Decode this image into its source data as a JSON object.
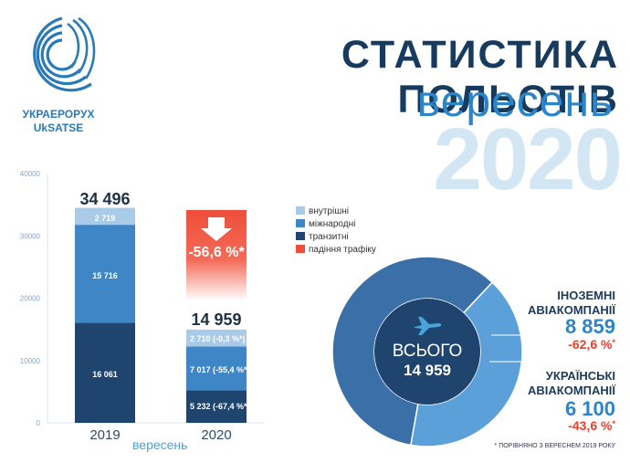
{
  "logo": {
    "line1": "УКРАЕРОРУХ",
    "line2": "UkSATSE"
  },
  "header": {
    "title": "СТАТИСТИКА ПОЛЬОТІВ",
    "month": "вересень",
    "year": "2020"
  },
  "colors": {
    "internal": "#a9cbe8",
    "international": "#3e86c6",
    "transit": "#1f456f",
    "drop": "#ef4e3b",
    "foreign": "#3a6fa8",
    "ukrainian": "#5ba0d8"
  },
  "legend": [
    {
      "label": "внутрішні",
      "color": "#a9cbe8"
    },
    {
      "label": "міжнародні",
      "color": "#3e86c6"
    },
    {
      "label": "транзитні",
      "color": "#1f456f"
    },
    {
      "label": "падіння трафіку",
      "color": "#ef4e3b"
    }
  ],
  "bar_chart": {
    "totals": [
      "34 496",
      "14 959"
    ],
    "drop_pct": "-56,6 %*",
    "y_ticks": [
      "0",
      "10000",
      "20000",
      "30000",
      "40000"
    ],
    "x_title": "вересень",
    "labels_2019": [
      "2 719",
      "15 716",
      "16 061"
    ],
    "labels_2020": [
      "2 710 (-0,3 %*)",
      "7 017 (-55,4 %*)",
      "5 232 (-67,4 %*)"
    ]
  },
  "chart_data": [
    {
      "type": "bar",
      "stacked": true,
      "categories": [
        "2019",
        "2020"
      ],
      "xlabel": "вересень",
      "ylabel": "",
      "ylim": [
        0,
        40000
      ],
      "grid": false,
      "series": [
        {
          "name": "транзитні",
          "values": [
            16061,
            5232
          ]
        },
        {
          "name": "міжнародні",
          "values": [
            15716,
            7017
          ]
        },
        {
          "name": "внутрішні",
          "values": [
            2719,
            2710
          ]
        }
      ],
      "annotations": [
        {
          "label": "падіння трафіку",
          "value": "-56,6 %*"
        }
      ]
    },
    {
      "type": "pie",
      "donut": true,
      "center_label": "ВСЬОГО",
      "center_value": "14 959",
      "slices": [
        {
          "name": "ІНОЗЕМНІ АВІАКОМПАНІЇ",
          "value": 8859,
          "change": "-62,6 %*"
        },
        {
          "name": "УКРАЇНСЬКІ АВІАКОМПАНІЇ",
          "value": 6100,
          "change": "-43,6 %*"
        }
      ]
    }
  ],
  "donut": {
    "center_label": "ВСЬОГО",
    "center_value": "14 959",
    "foreign": {
      "title1": "ІНОЗЕМНІ",
      "title2": "АВІАКОМПАНІЇ",
      "value": "8 859",
      "pct": "-62,6 %",
      "star": "*"
    },
    "ukrainian": {
      "title1": "УКРАЇНСЬКІ",
      "title2": "АВІАКОМПАНІЇ",
      "value": "6 100",
      "pct": "-43,6 %",
      "star": "*"
    }
  },
  "footnote": "* ПОРІВНЯНО З ВЕРЕСНЕМ 2019 РОКУ"
}
